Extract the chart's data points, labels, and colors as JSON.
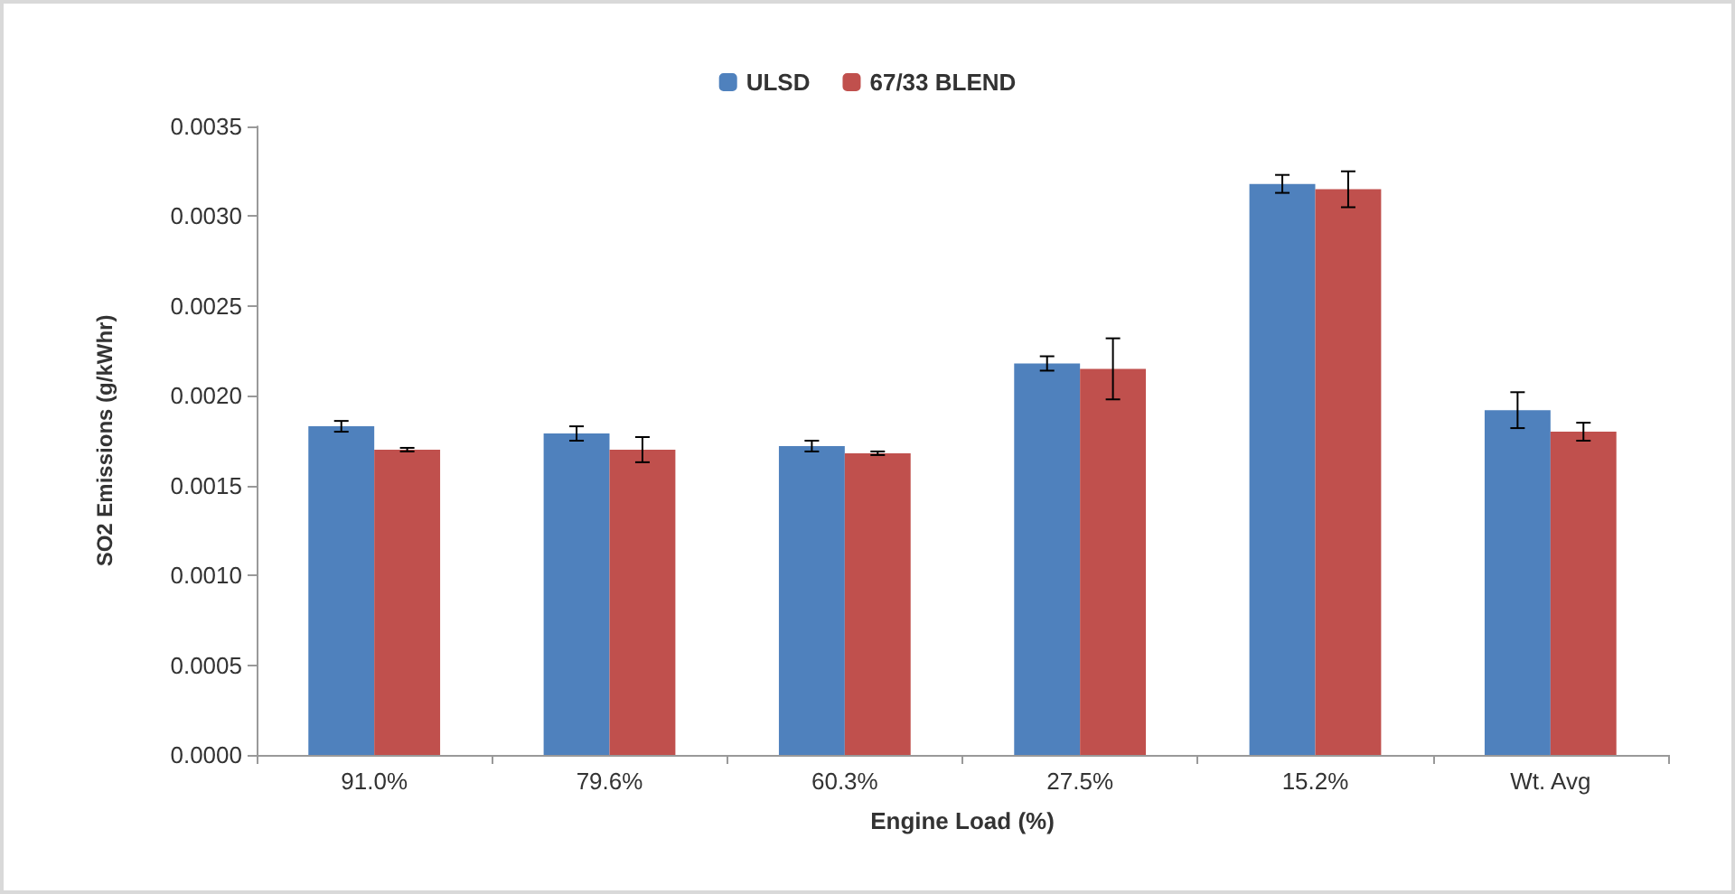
{
  "chart_data": {
    "type": "bar",
    "xlabel": "Engine Load (%)",
    "ylabel": "SO2 Emissions (g/kWhr)",
    "categories": [
      "91.0%",
      "79.6%",
      "60.3%",
      "27.5%",
      "15.2%",
      "Wt. Avg"
    ],
    "series": [
      {
        "name": "ULSD",
        "color": "#4f81bd",
        "values": [
          0.00183,
          0.00179,
          0.00172,
          0.00218,
          0.00318,
          0.00192
        ],
        "errors": [
          3e-05,
          4e-05,
          3e-05,
          4e-05,
          5e-05,
          0.0001
        ]
      },
      {
        "name": "67/33 BLEND",
        "color": "#c0504d",
        "values": [
          0.0017,
          0.0017,
          0.00168,
          0.00215,
          0.00315,
          0.0018
        ],
        "errors": [
          1e-05,
          7e-05,
          1e-05,
          0.00017,
          0.0001,
          5e-05
        ]
      }
    ],
    "ylim": [
      0,
      0.0035
    ],
    "yticks": [
      {
        "value": 0,
        "label": "0.0000"
      },
      {
        "value": 0.0005,
        "label": "0.0005"
      },
      {
        "value": 0.001,
        "label": "0.0010"
      },
      {
        "value": 0.0015,
        "label": "0.0015"
      },
      {
        "value": 0.002,
        "label": "0.0020"
      },
      {
        "value": 0.0025,
        "label": "0.0025"
      },
      {
        "value": 0.003,
        "label": "0.0030"
      },
      {
        "value": 0.0035,
        "label": "0.0035"
      }
    ],
    "grid": false,
    "legend": "top"
  }
}
